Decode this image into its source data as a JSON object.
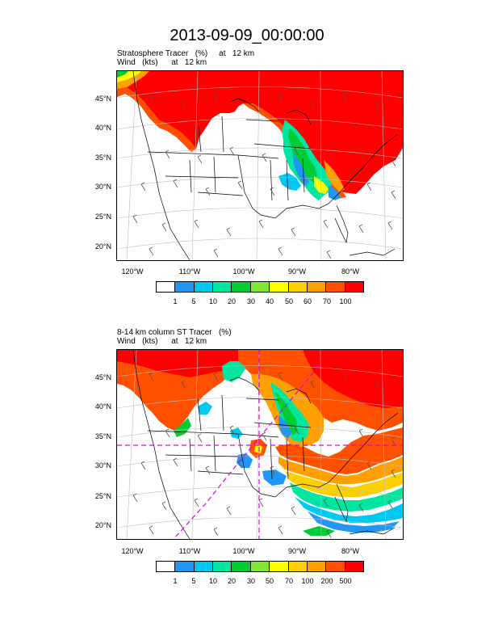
{
  "title": "2013-09-09_00:00:00",
  "panels": [
    {
      "label_line1": "Stratosphere Tracer   (%)     at   12 km",
      "label_line2": "Wind   (kts)      at   12 km",
      "lat_labels": [
        "45°N",
        "40°N",
        "35°N",
        "30°N",
        "25°N",
        "20°N"
      ],
      "lon_labels": [
        "120°W",
        "110°W",
        "100°W",
        "90°W",
        "80°W"
      ],
      "colorbar_labels": [
        "1",
        "5",
        "10",
        "20",
        "30",
        "40",
        "50",
        "60",
        "70",
        "100"
      ],
      "colorbar_colors": [
        "#ffffff",
        "#2196f3",
        "#00c8f0",
        "#00e6a0",
        "#00cc33",
        "#80e633",
        "#ffff00",
        "#ffd000",
        "#ffa000",
        "#ff5000",
        "#ff0000"
      ]
    },
    {
      "label_line1": "8-14 km column ST Tracer   (%)",
      "label_line2": "Wind   (kts)      at   12 km",
      "lat_labels": [
        "45°N",
        "40°N",
        "35°N",
        "30°N",
        "25°N",
        "20°N"
      ],
      "lon_labels": [
        "120°W",
        "110°W",
        "100°W",
        "90°W",
        "80°W"
      ],
      "colorbar_labels": [
        "1",
        "5",
        "10",
        "20",
        "30",
        "50",
        "70",
        "100",
        "200",
        "500"
      ],
      "colorbar_colors": [
        "#ffffff",
        "#2196f3",
        "#00c8f0",
        "#00e6a0",
        "#00cc33",
        "#80e633",
        "#ffff00",
        "#ffd000",
        "#ffa000",
        "#ff5000",
        "#ff0000"
      ]
    }
  ]
}
